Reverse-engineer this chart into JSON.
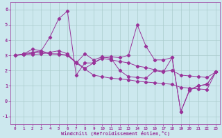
{
  "x_values": [
    0,
    1,
    2,
    3,
    4,
    5,
    6,
    7,
    8,
    9,
    10,
    11,
    12,
    13,
    14,
    15,
    16,
    17,
    18,
    19,
    20,
    21,
    22,
    23
  ],
  "series1": [
    3.0,
    3.1,
    3.4,
    3.3,
    4.2,
    5.4,
    5.9,
    1.7,
    2.5,
    2.5,
    2.85,
    2.9,
    2.85,
    3.0,
    5.0,
    3.6,
    2.7,
    2.7,
    2.85,
    -0.7,
    0.7,
    1.0,
    1.1,
    1.9
  ],
  "series2": [
    3.0,
    3.1,
    3.2,
    3.3,
    3.1,
    3.1,
    3.0,
    2.5,
    2.1,
    1.7,
    1.6,
    1.5,
    1.45,
    1.4,
    1.3,
    1.25,
    1.2,
    1.15,
    1.1,
    0.9,
    0.85,
    0.8,
    0.75,
    1.9
  ],
  "series3": [
    3.0,
    3.05,
    3.05,
    3.1,
    3.2,
    3.3,
    3.1,
    2.5,
    3.1,
    2.7,
    2.9,
    2.8,
    2.0,
    1.6,
    1.55,
    1.5,
    2.0,
    1.9,
    2.85,
    -0.7,
    0.75,
    1.0,
    1.1,
    1.9
  ],
  "series4": [
    3.0,
    3.05,
    3.15,
    3.2,
    3.1,
    3.05,
    3.0,
    2.55,
    2.15,
    2.5,
    2.8,
    2.7,
    2.6,
    2.5,
    2.3,
    2.2,
    2.05,
    1.95,
    2.0,
    1.7,
    1.65,
    1.6,
    1.55,
    1.9
  ],
  "line_color": "#993399",
  "bg_color": "#cce8ee",
  "grid_color": "#aacccc",
  "xlabel": "Windchill (Refroidissement éolien,°C)",
  "xlim": [
    -0.5,
    23.5
  ],
  "ylim": [
    -1.5,
    6.5
  ],
  "yticks": [
    -1,
    0,
    1,
    2,
    3,
    4,
    5,
    6
  ],
  "xticks": [
    0,
    1,
    2,
    3,
    4,
    5,
    6,
    7,
    8,
    9,
    10,
    11,
    12,
    13,
    14,
    15,
    16,
    17,
    18,
    19,
    20,
    21,
    22,
    23
  ]
}
